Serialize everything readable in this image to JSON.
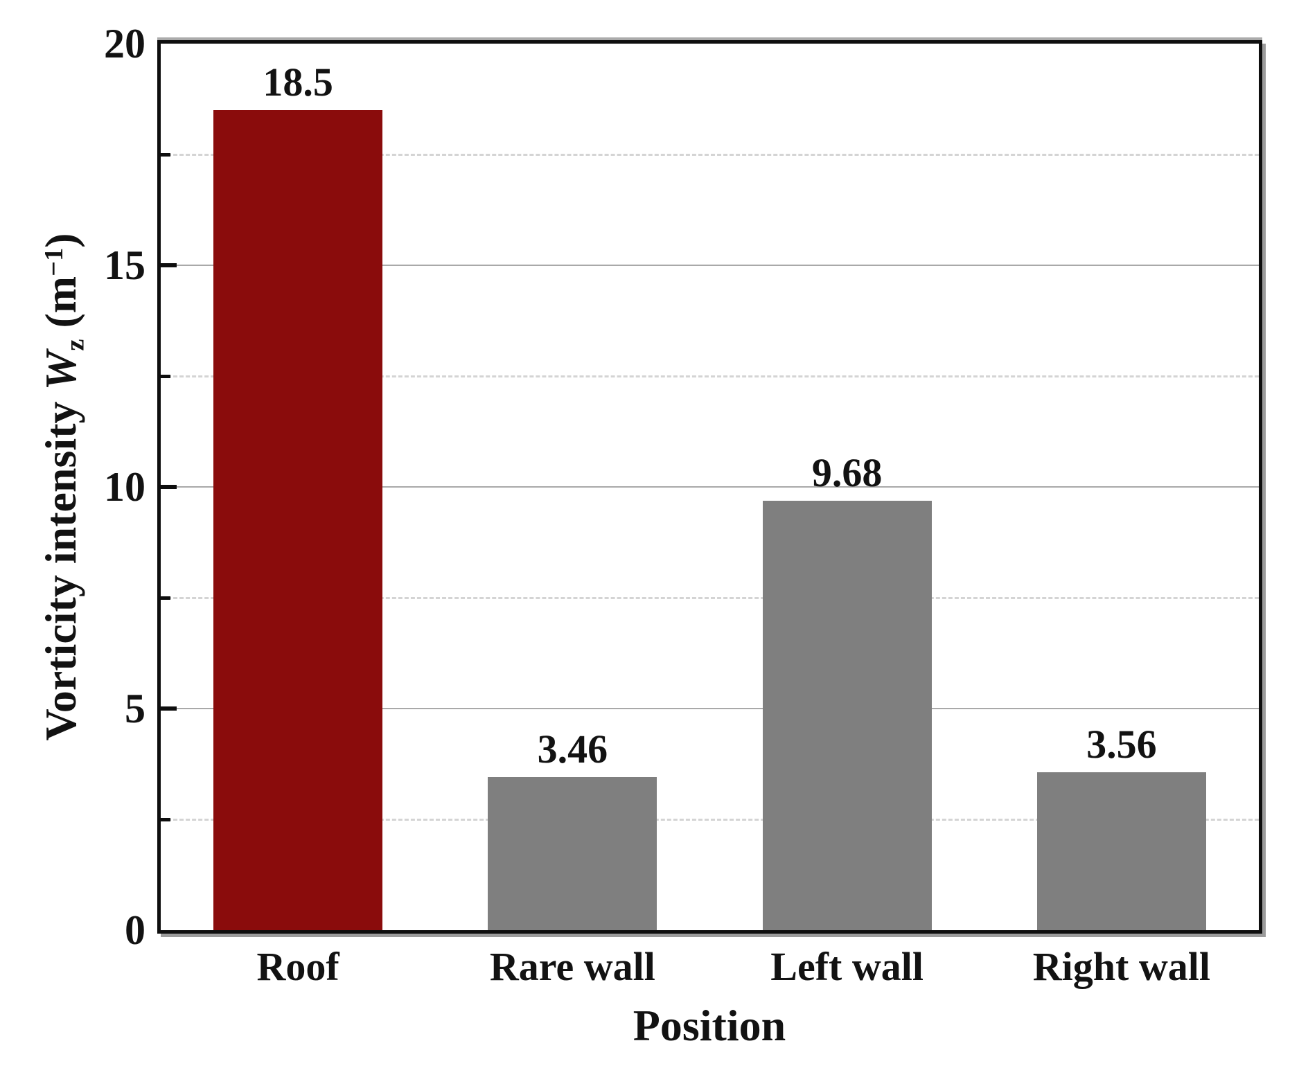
{
  "chart_data": {
    "type": "bar",
    "title": "",
    "categories": [
      "Roof",
      "Rare wall",
      "Left wall",
      "Right wall"
    ],
    "values": [
      18.5,
      3.46,
      9.68,
      3.56
    ],
    "value_labels": [
      "18.5",
      "3.46",
      "9.68",
      "3.56"
    ],
    "bar_colors": [
      "#8a0c0c",
      "#7f7f7f",
      "#7f7f7f",
      "#7f7f7f"
    ],
    "xlabel": "Position",
    "ylabel": "Vorticity intensity Wz (m-1)",
    "ylabel_parts": {
      "prefix": "Vorticity intensity ",
      "symbol": "W",
      "subscript": "z",
      "unit_open": " (m",
      "superscript": "−1",
      "unit_close": ")"
    },
    "ylim": [
      0,
      20
    ],
    "yticks_major": [
      0,
      5,
      10,
      15,
      20
    ],
    "ytick_labels": [
      "0",
      "5",
      "10",
      "15",
      "20"
    ],
    "yticks_minor": [
      2.5,
      7.5,
      12.5,
      17.5
    ],
    "grid": {
      "major_style": "solid",
      "minor_style": "dashed",
      "vertical": false
    },
    "legend": "none",
    "colors": {
      "highlight_bar": "#8a0c0c",
      "default_bar": "#7f7f7f",
      "grid_major": "#a9a9a9",
      "grid_minor": "#d4d4d4",
      "axis_frame": "#0e0e0e",
      "background": "#ffffff"
    }
  }
}
